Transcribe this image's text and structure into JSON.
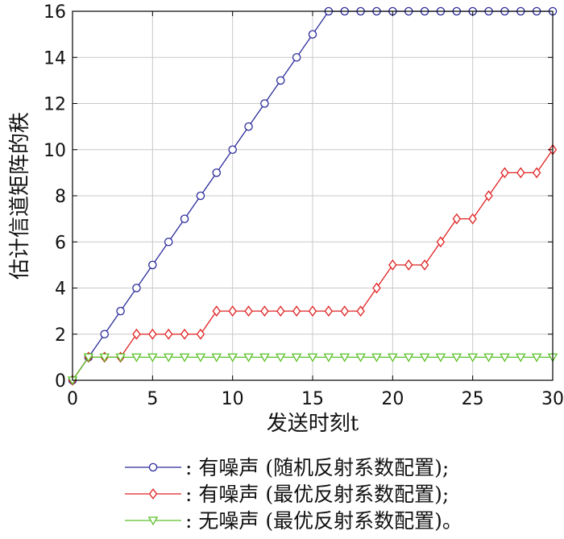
{
  "chart_data": {
    "type": "line",
    "xlabel": "发送时刻t",
    "ylabel": "估计信道矩阵的秩",
    "xlim": [
      0,
      30
    ],
    "ylim": [
      0,
      16
    ],
    "xticks": [
      0,
      5,
      10,
      15,
      20,
      25,
      30
    ],
    "yticks": [
      0,
      2,
      4,
      6,
      8,
      10,
      12,
      14,
      16
    ],
    "grid": true,
    "legend_position": "bottom",
    "x": [
      0,
      1,
      2,
      3,
      4,
      5,
      6,
      7,
      8,
      9,
      10,
      11,
      12,
      13,
      14,
      15,
      16,
      17,
      18,
      19,
      20,
      21,
      22,
      23,
      24,
      25,
      26,
      27,
      28,
      29,
      30
    ],
    "series": [
      {
        "name": ": 有噪声 (随机反射系数配置);",
        "color": "#2b2b9b",
        "marker": "circle",
        "values": [
          0,
          1,
          2,
          3,
          4,
          5,
          6,
          7,
          8,
          9,
          10,
          11,
          12,
          13,
          14,
          15,
          16,
          16,
          16,
          16,
          16,
          16,
          16,
          16,
          16,
          16,
          16,
          16,
          16,
          16,
          16
        ]
      },
      {
        "name": ": 有噪声 (最优反射系数配置);",
        "color": "#e02020",
        "marker": "diamond",
        "values": [
          0,
          1,
          1,
          1,
          2,
          2,
          2,
          2,
          2,
          3,
          3,
          3,
          3,
          3,
          3,
          3,
          3,
          3,
          3,
          4,
          5,
          5,
          5,
          6,
          7,
          7,
          8,
          9,
          9,
          9,
          10
        ]
      },
      {
        "name": ": 无噪声 (最优反射系数配置)。",
        "color": "#5cc02a",
        "marker": "triangle-down",
        "values": [
          0,
          1,
          1,
          1,
          1,
          1,
          1,
          1,
          1,
          1,
          1,
          1,
          1,
          1,
          1,
          1,
          1,
          1,
          1,
          1,
          1,
          1,
          1,
          1,
          1,
          1,
          1,
          1,
          1,
          1,
          1
        ]
      }
    ]
  }
}
